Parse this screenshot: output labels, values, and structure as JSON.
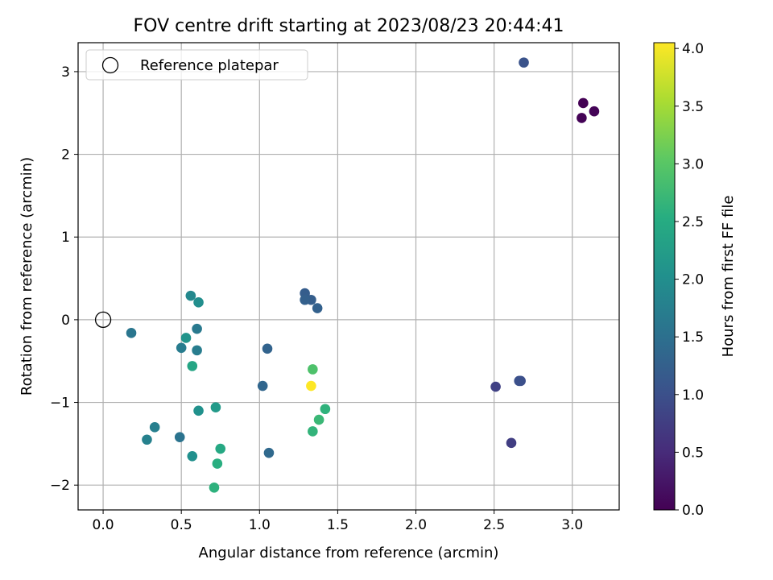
{
  "chart_data": {
    "type": "scatter",
    "title": "FOV centre drift starting at 2023/08/23 20:44:41",
    "xlabel": "Angular distance from reference (arcmin)",
    "ylabel": "Rotation from reference (arcmin)",
    "xlim": [
      -0.16,
      3.3
    ],
    "ylim": [
      -2.3,
      3.35
    ],
    "x_ticks": [
      0.0,
      0.5,
      1.0,
      1.5,
      2.0,
      2.5,
      3.0
    ],
    "x_tick_labels": [
      "0.0",
      "0.5",
      "1.0",
      "1.5",
      "2.0",
      "2.5",
      "3.0"
    ],
    "y_ticks": [
      -2,
      -1,
      0,
      1,
      2,
      3
    ],
    "y_tick_labels": [
      "−2",
      "−1",
      "0",
      "1",
      "2",
      "3"
    ],
    "grid": true,
    "legend": {
      "placement": "upper-left",
      "entries": [
        "Reference platepar"
      ]
    },
    "reference_point": {
      "x": 0.0,
      "y": 0.0
    },
    "colorbar": {
      "label": "Hours from first FF file",
      "colormap": "viridis",
      "range": [
        0.0,
        4.05
      ],
      "ticks": [
        0.0,
        0.5,
        1.0,
        1.5,
        2.0,
        2.5,
        3.0,
        3.5,
        4.0
      ],
      "tick_labels": [
        "0.0",
        "0.5",
        "1.0",
        "1.5",
        "2.0",
        "2.5",
        "3.0",
        "3.5",
        "4.0"
      ]
    },
    "points": [
      {
        "x": 3.07,
        "y": 2.62,
        "hours": 0.0
      },
      {
        "x": 3.06,
        "y": 2.44,
        "hours": 0.02
      },
      {
        "x": 3.14,
        "y": 2.52,
        "hours": 0.04
      },
      {
        "x": 2.61,
        "y": -1.49,
        "hours": 0.75
      },
      {
        "x": 2.51,
        "y": -0.81,
        "hours": 0.8
      },
      {
        "x": 2.67,
        "y": -0.74,
        "hours": 0.97
      },
      {
        "x": 2.66,
        "y": -0.74,
        "hours": 1.0
      },
      {
        "x": 2.69,
        "y": 3.11,
        "hours": 1.05
      },
      {
        "x": 1.29,
        "y": 0.32,
        "hours": 1.2
      },
      {
        "x": 1.33,
        "y": 0.24,
        "hours": 1.22
      },
      {
        "x": 1.29,
        "y": 0.24,
        "hours": 1.25
      },
      {
        "x": 1.37,
        "y": 0.14,
        "hours": 1.27
      },
      {
        "x": 1.05,
        "y": -0.35,
        "hours": 1.3
      },
      {
        "x": 1.02,
        "y": -0.8,
        "hours": 1.35
      },
      {
        "x": 1.06,
        "y": -1.61,
        "hours": 1.4
      },
      {
        "x": 0.49,
        "y": -1.42,
        "hours": 1.55
      },
      {
        "x": 0.18,
        "y": -0.16,
        "hours": 1.6
      },
      {
        "x": 0.6,
        "y": -0.11,
        "hours": 1.65
      },
      {
        "x": 0.5,
        "y": -0.34,
        "hours": 1.7
      },
      {
        "x": 0.6,
        "y": -0.37,
        "hours": 1.72
      },
      {
        "x": 0.33,
        "y": -1.3,
        "hours": 1.75
      },
      {
        "x": 0.28,
        "y": -1.45,
        "hours": 1.78
      },
      {
        "x": 0.56,
        "y": 0.29,
        "hours": 1.9
      },
      {
        "x": 0.61,
        "y": 0.21,
        "hours": 2.0
      },
      {
        "x": 0.57,
        "y": -1.65,
        "hours": 2.02
      },
      {
        "x": 0.61,
        "y": -1.1,
        "hours": 2.05
      },
      {
        "x": 0.53,
        "y": -0.22,
        "hours": 2.1
      },
      {
        "x": 0.72,
        "y": -1.06,
        "hours": 2.2
      },
      {
        "x": 0.57,
        "y": -0.56,
        "hours": 2.4
      },
      {
        "x": 0.75,
        "y": -1.56,
        "hours": 2.45
      },
      {
        "x": 0.73,
        "y": -1.74,
        "hours": 2.55
      },
      {
        "x": 0.71,
        "y": -2.03,
        "hours": 2.6
      },
      {
        "x": 1.42,
        "y": -1.08,
        "hours": 2.62
      },
      {
        "x": 1.34,
        "y": -1.35,
        "hours": 2.65
      },
      {
        "x": 1.38,
        "y": -1.21,
        "hours": 2.72
      },
      {
        "x": 1.34,
        "y": -0.6,
        "hours": 2.9
      },
      {
        "x": 1.33,
        "y": -0.8,
        "hours": 4.05
      }
    ]
  }
}
